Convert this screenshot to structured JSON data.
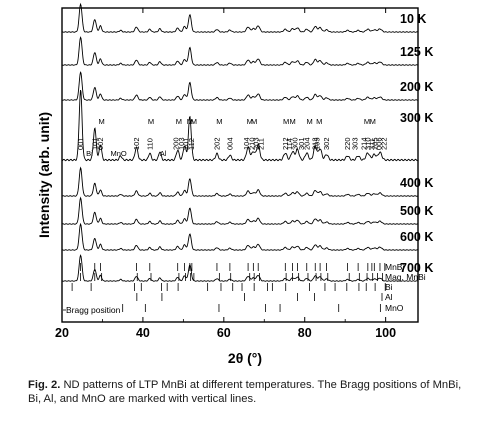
{
  "chart_data": {
    "type": "line",
    "xlabel": "2θ (°)",
    "ylabel": "Intensity (arb. unit)",
    "xlim": [
      20,
      108
    ],
    "xticks": [
      20,
      40,
      60,
      80,
      100
    ],
    "grid": false,
    "series": [
      {
        "name": "10 K"
      },
      {
        "name": "125 K"
      },
      {
        "name": "200 K"
      },
      {
        "name": "300 K"
      },
      {
        "name": "400 K"
      },
      {
        "name": "500 K"
      },
      {
        "name": "600 K"
      },
      {
        "name": "700 K"
      }
    ],
    "peaks": [
      {
        "x": 24.6,
        "h": 1.0,
        "w": 0.35
      },
      {
        "x": 28.1,
        "h": 0.45,
        "w": 0.35
      },
      {
        "x": 29.5,
        "h": 0.22,
        "w": 0.3
      },
      {
        "x": 34.5,
        "h": 0.06,
        "w": 0.3
      },
      {
        "x": 38.4,
        "h": 0.18,
        "w": 0.35
      },
      {
        "x": 41.7,
        "h": 0.1,
        "w": 0.3
      },
      {
        "x": 44.2,
        "h": 0.12,
        "w": 0.3
      },
      {
        "x": 48.6,
        "h": 0.14,
        "w": 0.35
      },
      {
        "x": 50.3,
        "h": 0.2,
        "w": 0.35
      },
      {
        "x": 51.6,
        "h": 0.62,
        "w": 0.35
      },
      {
        "x": 58.3,
        "h": 0.09,
        "w": 0.35
      },
      {
        "x": 61.5,
        "h": 0.07,
        "w": 0.35
      },
      {
        "x": 66.0,
        "h": 0.18,
        "w": 0.4
      },
      {
        "x": 67.3,
        "h": 0.12,
        "w": 0.4
      },
      {
        "x": 68.5,
        "h": 0.22,
        "w": 0.4
      },
      {
        "x": 75.2,
        "h": 0.1,
        "w": 0.4
      },
      {
        "x": 77.0,
        "h": 0.12,
        "w": 0.4
      },
      {
        "x": 78.2,
        "h": 0.15,
        "w": 0.4
      },
      {
        "x": 80.5,
        "h": 0.1,
        "w": 0.4
      },
      {
        "x": 82.6,
        "h": 0.2,
        "w": 0.4
      },
      {
        "x": 83.8,
        "h": 0.16,
        "w": 0.4
      },
      {
        "x": 85.4,
        "h": 0.08,
        "w": 0.4
      },
      {
        "x": 90.6,
        "h": 0.06,
        "w": 0.4
      },
      {
        "x": 93.2,
        "h": 0.06,
        "w": 0.4
      },
      {
        "x": 95.6,
        "h": 0.1,
        "w": 0.45
      },
      {
        "x": 97.2,
        "h": 0.08,
        "w": 0.45
      },
      {
        "x": 98.6,
        "h": 0.11,
        "w": 0.45
      }
    ],
    "annotations": [
      {
        "text": "001",
        "x": 24.6,
        "rotate": true
      },
      {
        "text": "101",
        "x": 28.1,
        "rotate": true
      },
      {
        "text": "Bi",
        "x": 26.8,
        "rotate": false
      },
      {
        "text": "M",
        "x": 29.8,
        "rotate": false
      },
      {
        "text": "002",
        "x": 29.5,
        "rotate": true
      },
      {
        "text": "MnO",
        "x": 34.0,
        "rotate": false
      },
      {
        "text": "102",
        "x": 38.4,
        "rotate": true
      },
      {
        "text": "M",
        "x": 42.0,
        "rotate": false
      },
      {
        "text": "110",
        "x": 41.7,
        "rotate": true
      },
      {
        "text": "Al",
        "x": 45.0,
        "rotate": false
      },
      {
        "text": "200",
        "x": 48.2,
        "rotate": true
      },
      {
        "text": "M",
        "x": 48.9,
        "rotate": false
      },
      {
        "text": "103",
        "x": 49.6,
        "rotate": true
      },
      {
        "text": "201",
        "x": 50.6,
        "rotate": true
      },
      {
        "text": "M",
        "x": 51.6,
        "rotate": false
      },
      {
        "text": "112",
        "x": 52.0,
        "rotate": true
      },
      {
        "text": "M",
        "x": 52.6,
        "rotate": false
      },
      {
        "text": "202",
        "x": 58.3,
        "rotate": true
      },
      {
        "text": "M",
        "x": 58.9,
        "rotate": false
      },
      {
        "text": "004",
        "x": 61.5,
        "rotate": true
      },
      {
        "text": "104",
        "x": 65.6,
        "rotate": true
      },
      {
        "text": "M",
        "x": 66.4,
        "rotate": false
      },
      {
        "text": "210",
        "x": 67.0,
        "rotate": true
      },
      {
        "text": "M",
        "x": 67.5,
        "rotate": false
      },
      {
        "text": "203",
        "x": 68.0,
        "rotate": true
      },
      {
        "text": "211",
        "x": 69.2,
        "rotate": true
      },
      {
        "text": "212",
        "x": 75.2,
        "rotate": true
      },
      {
        "text": "M",
        "x": 75.4,
        "rotate": false
      },
      {
        "text": "114",
        "x": 76.2,
        "rotate": true
      },
      {
        "text": "M",
        "x": 77.0,
        "rotate": false
      },
      {
        "text": "300",
        "x": 77.6,
        "rotate": true
      },
      {
        "text": "301",
        "x": 79.2,
        "rotate": true
      },
      {
        "text": "204",
        "x": 80.5,
        "rotate": true
      },
      {
        "text": "M",
        "x": 81.2,
        "rotate": false
      },
      {
        "text": "213",
        "x": 82.5,
        "rotate": true
      },
      {
        "text": "105",
        "x": 83.0,
        "rotate": true
      },
      {
        "text": "M",
        "x": 83.6,
        "rotate": false
      },
      {
        "text": "302",
        "x": 85.4,
        "rotate": true
      },
      {
        "text": "220",
        "x": 90.6,
        "rotate": true
      },
      {
        "text": "303",
        "x": 92.4,
        "rotate": true
      },
      {
        "text": "214",
        "x": 94.6,
        "rotate": true
      },
      {
        "text": "M",
        "x": 95.4,
        "rotate": false
      },
      {
        "text": "310",
        "x": 95.6,
        "rotate": true
      },
      {
        "text": "311",
        "x": 96.6,
        "rotate": true
      },
      {
        "text": "M",
        "x": 96.8,
        "rotate": false
      },
      {
        "text": "205",
        "x": 97.4,
        "rotate": true
      },
      {
        "text": "006",
        "x": 98.4,
        "rotate": true
      },
      {
        "text": "222",
        "x": 99.6,
        "rotate": true
      }
    ],
    "bragg_rows": [
      {
        "name": "MnBi",
        "positions": [
          24.6,
          28.1,
          29.5,
          38.4,
          41.7,
          48.6,
          50.3,
          51.6,
          52.1,
          58.3,
          61.5,
          66.0,
          67.3,
          68.5,
          75.2,
          77.0,
          78.2,
          80.5,
          82.6,
          83.8,
          85.4,
          90.6,
          93.2,
          95.6,
          96.6,
          97.2,
          98.6,
          99.8
        ]
      },
      {
        "name": "Mag. MnBi",
        "positions": [
          24.6,
          28.1,
          29.8,
          38.6,
          42.0,
          48.9,
          50.5,
          51.8,
          52.6,
          58.9,
          61.7,
          66.4,
          67.5,
          68.8,
          75.4,
          77.0,
          78.5,
          80.8,
          82.8,
          84.0,
          85.7,
          91.0,
          93.5,
          95.4,
          96.8,
          98.0,
          99.2
        ]
      },
      {
        "name": "Bi",
        "positions": [
          22.5,
          27.2,
          37.9,
          39.6,
          44.6,
          46.0,
          48.7,
          56.0,
          59.3,
          62.2,
          64.5,
          67.5,
          70.8,
          72.0,
          75.3,
          81.2,
          85.0,
          87.5,
          90.4,
          93.4,
          95.2,
          97.4,
          99.9
        ]
      },
      {
        "name": "Al",
        "positions": [
          38.5,
          44.7,
          65.1,
          78.2,
          82.4,
          99.1
        ]
      },
      {
        "name": "MnO",
        "positions": [
          35.0,
          40.6,
          58.8,
          70.3,
          73.9,
          88.4,
          98.7
        ]
      }
    ],
    "annotation_text": "Bragg position"
  },
  "caption": {
    "label": "Fig. 2.",
    "text": "ND patterns of LTP MnBi at different temperatures. The Bragg positions of MnBi, Bi, Al, and MnO are marked with vertical lines."
  }
}
